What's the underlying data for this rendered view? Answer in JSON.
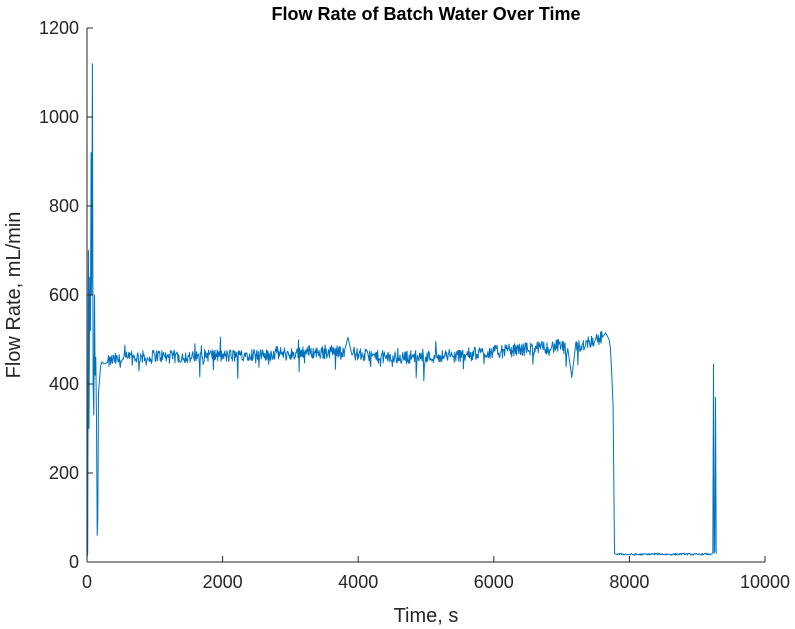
{
  "chart_data": {
    "type": "line",
    "title": "Flow Rate of Batch Water Over Time",
    "xlabel": "Time, s",
    "ylabel": "Flow Rate, mL/min",
    "xlim": [
      0,
      10000
    ],
    "ylim": [
      0,
      1200
    ],
    "xticks": [
      0,
      2000,
      4000,
      6000,
      8000,
      10000
    ],
    "yticks": [
      0,
      200,
      400,
      600,
      800,
      1000,
      1200
    ],
    "xtick_labels": [
      "0",
      "2000",
      "4000",
      "6000",
      "8000",
      "10000"
    ],
    "ytick_labels": [
      "0",
      "200",
      "400",
      "600",
      "800",
      "1000",
      "1200"
    ],
    "grid": false,
    "box": "left-bottom axes only",
    "line_color": "#0072bd",
    "axis_color": "#262626",
    "series": [
      {
        "x": [
          0,
          10,
          20,
          30,
          40,
          50,
          60,
          70,
          80,
          90,
          100,
          110,
          120,
          130,
          140,
          150,
          160,
          170,
          180,
          190,
          200,
          220,
          250,
          300,
          400,
          500,
          600,
          700,
          800,
          900,
          1000,
          1200,
          1400,
          1600,
          1800,
          2000,
          2200,
          2400,
          2600,
          2800,
          3000,
          3200,
          3400,
          3600,
          3800,
          3850,
          3900,
          4000,
          4200,
          4400,
          4600,
          4800,
          5000,
          5200,
          5400,
          5600,
          5800,
          6000,
          6200,
          6400,
          6600,
          6800,
          7000,
          7100,
          7150,
          7200,
          7400,
          7500,
          7600,
          7650,
          7700,
          7720,
          7740,
          7760,
          7780,
          7800,
          8000,
          8200,
          8400,
          8600,
          8800,
          9000,
          9100,
          9200,
          9230,
          9240,
          9250,
          9260,
          9270,
          9280,
          9290
        ],
        "y": [
          10,
          20,
          700,
          300,
          640,
          520,
          920,
          600,
          1120,
          400,
          330,
          600,
          420,
          460,
          320,
          60,
          100,
          380,
          400,
          420,
          440,
          450,
          445,
          448,
          455,
          452,
          458,
          460,
          462,
          455,
          465,
          460,
          462,
          458,
          466,
          462,
          464,
          468,
          462,
          470,
          466,
          474,
          470,
          472,
          476,
          505,
          470,
          466,
          462,
          460,
          458,
          462,
          460,
          464,
          462,
          466,
          470,
          472,
          474,
          478,
          480,
          482,
          486,
          470,
          415,
          480,
          495,
          500,
          505,
          515,
          500,
          480,
          420,
          350,
          20,
          18,
          17,
          17,
          18,
          17,
          18,
          17,
          18,
          17,
          20,
          445,
          20,
          25,
          370,
          20,
          20
        ]
      }
    ]
  }
}
